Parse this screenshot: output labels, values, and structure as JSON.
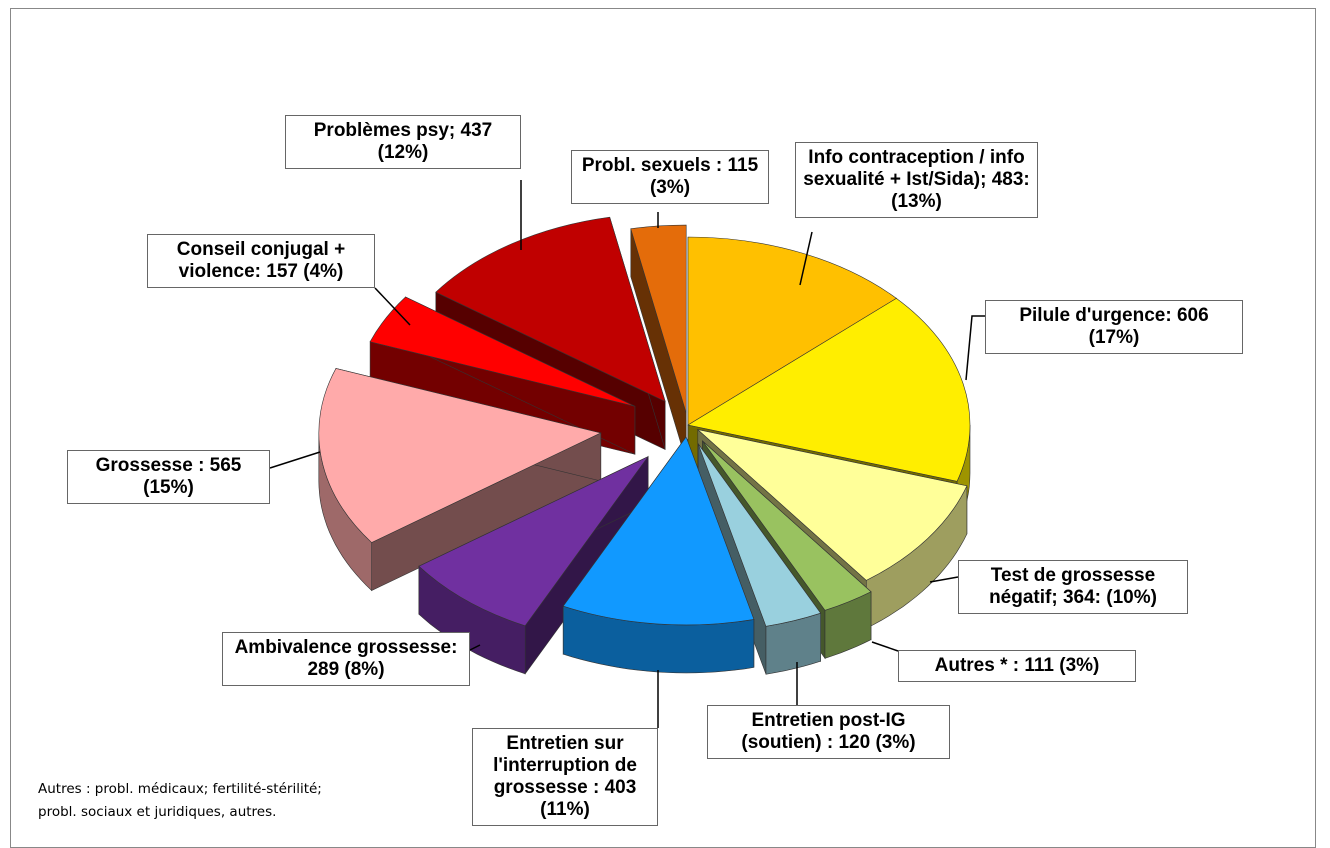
{
  "chart_data": {
    "type": "pie",
    "values": [
      483,
      606,
      364,
      111,
      120,
      403,
      289,
      565,
      157,
      437,
      115
    ],
    "value_labels": [
      "Info contraception / info sexualité + Ist/Sida); 483: (13%)",
      "Pilule d'urgence: 606 (17%)",
      "Test de grossesse négatif; 364: (10%)",
      "Autres * : 111 (3%)",
      "Entretien post-IG (soutien) : 120 (3%)",
      "Entretien sur l'interruption de grossesse : 403 (11%)",
      "Ambivalence grossesse: 289 (8%)",
      "Grossesse : 565 (15%)",
      "Conseil conjugal + violence: 157 (4%)",
      "Problèmes psy; 437 (12%)",
      "Probl. sexuels : 115 (3%)"
    ],
    "colors": [
      "#ffc000",
      "#ffee00",
      "#ffff99",
      "#99c260",
      "#99d0de",
      "#1199ff",
      "#7030a0",
      "#ffaaaa",
      "#ff0000",
      "#c00000",
      "#e46c0a"
    ],
    "footnote": "Autres : probl. médicaux; fertilité-stérilité; probl. sociaux et juridiques, autres."
  }
}
